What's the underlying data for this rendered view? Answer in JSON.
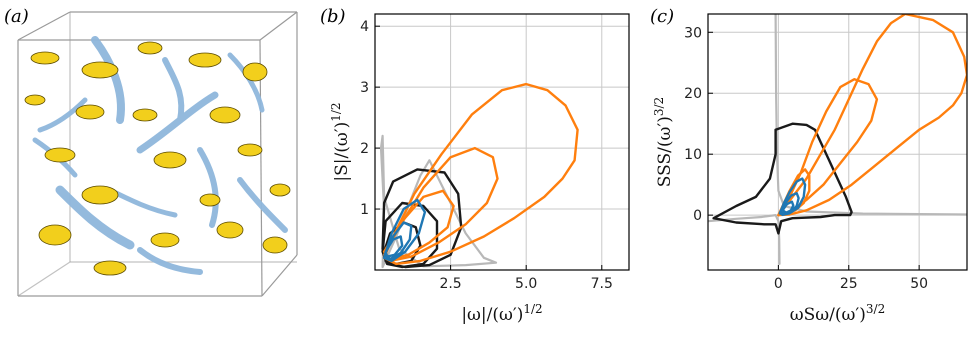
{
  "panels": {
    "a": {
      "label": "(a)"
    },
    "b": {
      "label": "(b)"
    },
    "c": {
      "label": "(c)"
    }
  },
  "colors": {
    "orange": "#ff7f0e",
    "blue": "#1f77b4",
    "black": "#1a1a1a",
    "grey": "#b8b8b8",
    "vortex_blue": "#8fb7dc",
    "strain_yellow": "#f2cf1c"
  },
  "chart_data": [
    {
      "panel": "a",
      "type": "other",
      "description_visible": "3-D isosurface rendering in a wireframe box: yellow blobs and blue tubes"
    },
    {
      "panel": "b",
      "type": "line",
      "xlabel": "|ω|/(ω′)^1/2",
      "ylabel": "|S|/(ω′)^1/2",
      "xlim": [
        0,
        8.4
      ],
      "ylim": [
        0,
        4.2
      ],
      "xticks": [
        2.5,
        5.0,
        7.5
      ],
      "xtick_labels": [
        "2.5",
        "5.0",
        "7.5"
      ],
      "yticks": [
        1,
        2,
        3,
        4
      ],
      "ytick_labels": [
        "1",
        "2",
        "3",
        "4"
      ],
      "grid": true,
      "series": [
        {
          "color": "grey",
          "points": [
            [
              0.25,
              0.05
            ],
            [
              0.7,
              0.55
            ],
            [
              1.1,
              1.05
            ],
            [
              1.5,
              1.55
            ],
            [
              1.8,
              1.8
            ],
            [
              2.2,
              1.4
            ],
            [
              2.6,
              1.0
            ],
            [
              3.0,
              0.6
            ],
            [
              3.6,
              0.2
            ],
            [
              4.0,
              0.12
            ],
            [
              3.0,
              0.08
            ],
            [
              1.6,
              0.06
            ],
            [
              0.8,
              0.35
            ],
            [
              0.3,
              1.2
            ],
            [
              0.25,
              2.2
            ],
            [
              0.2,
              2.0
            ],
            [
              0.3,
              1.0
            ],
            [
              0.25,
              0.05
            ]
          ]
        },
        {
          "color": "black",
          "points": [
            [
              0.25,
              0.35
            ],
            [
              0.3,
              1.1
            ],
            [
              0.6,
              1.45
            ],
            [
              1.4,
              1.65
            ],
            [
              2.3,
              1.6
            ],
            [
              2.75,
              1.25
            ],
            [
              2.85,
              0.7
            ],
            [
              2.5,
              0.25
            ],
            [
              1.8,
              0.08
            ],
            [
              1.0,
              0.05
            ],
            [
              0.45,
              0.1
            ],
            [
              0.25,
              0.35
            ]
          ]
        },
        {
          "color": "black",
          "points": [
            [
              0.25,
              0.3
            ],
            [
              0.35,
              0.8
            ],
            [
              0.9,
              1.1
            ],
            [
              1.6,
              1.05
            ],
            [
              2.05,
              0.8
            ],
            [
              2.05,
              0.35
            ],
            [
              1.6,
              0.1
            ],
            [
              0.9,
              0.05
            ],
            [
              0.4,
              0.1
            ],
            [
              0.25,
              0.3
            ]
          ]
        },
        {
          "color": "black",
          "points": [
            [
              0.3,
              0.3
            ],
            [
              0.5,
              0.6
            ],
            [
              0.95,
              0.78
            ],
            [
              1.35,
              0.7
            ],
            [
              1.5,
              0.4
            ],
            [
              1.2,
              0.15
            ],
            [
              0.7,
              0.1
            ],
            [
              0.35,
              0.15
            ],
            [
              0.3,
              0.3
            ]
          ]
        },
        {
          "color": "orange",
          "points": [
            [
              0.3,
              0.2
            ],
            [
              0.6,
              0.55
            ],
            [
              1.3,
              1.25
            ],
            [
              2.2,
              1.9
            ],
            [
              3.2,
              2.55
            ],
            [
              4.2,
              2.95
            ],
            [
              5.0,
              3.05
            ],
            [
              5.7,
              2.95
            ],
            [
              6.3,
              2.7
            ],
            [
              6.7,
              2.3
            ],
            [
              6.6,
              1.8
            ],
            [
              6.2,
              1.5
            ],
            [
              5.6,
              1.2
            ],
            [
              4.6,
              0.85
            ],
            [
              3.6,
              0.55
            ],
            [
              2.5,
              0.3
            ],
            [
              1.5,
              0.15
            ],
            [
              0.7,
              0.1
            ],
            [
              0.3,
              0.2
            ]
          ]
        },
        {
          "color": "orange",
          "points": [
            [
              0.3,
              0.25
            ],
            [
              0.8,
              0.7
            ],
            [
              1.6,
              1.35
            ],
            [
              2.5,
              1.85
            ],
            [
              3.3,
              2.0
            ],
            [
              3.9,
              1.85
            ],
            [
              4.05,
              1.5
            ],
            [
              3.7,
              1.1
            ],
            [
              3.0,
              0.75
            ],
            [
              2.1,
              0.45
            ],
            [
              1.2,
              0.22
            ],
            [
              0.5,
              0.15
            ],
            [
              0.3,
              0.25
            ]
          ]
        },
        {
          "color": "orange",
          "points": [
            [
              0.3,
              0.3
            ],
            [
              0.9,
              0.8
            ],
            [
              1.6,
              1.2
            ],
            [
              2.25,
              1.3
            ],
            [
              2.6,
              1.05
            ],
            [
              2.4,
              0.7
            ],
            [
              1.8,
              0.45
            ],
            [
              1.1,
              0.25
            ],
            [
              0.5,
              0.18
            ],
            [
              0.3,
              0.3
            ]
          ]
        },
        {
          "color": "blue",
          "points": [
            [
              0.3,
              0.2
            ],
            [
              0.55,
              0.6
            ],
            [
              0.95,
              1.0
            ],
            [
              1.4,
              1.15
            ],
            [
              1.65,
              0.95
            ],
            [
              1.45,
              0.6
            ],
            [
              1.0,
              0.3
            ],
            [
              0.55,
              0.15
            ],
            [
              0.3,
              0.2
            ]
          ]
        },
        {
          "color": "blue",
          "points": [
            [
              0.32,
              0.25
            ],
            [
              0.6,
              0.55
            ],
            [
              0.95,
              0.78
            ],
            [
              1.2,
              0.72
            ],
            [
              1.15,
              0.5
            ],
            [
              0.85,
              0.28
            ],
            [
              0.5,
              0.18
            ],
            [
              0.32,
              0.25
            ]
          ]
        },
        {
          "color": "blue",
          "points": [
            [
              0.35,
              0.3
            ],
            [
              0.6,
              0.5
            ],
            [
              0.85,
              0.55
            ],
            [
              0.9,
              0.4
            ],
            [
              0.65,
              0.25
            ],
            [
              0.4,
              0.22
            ],
            [
              0.35,
              0.3
            ]
          ]
        }
      ]
    },
    {
      "panel": "c",
      "type": "line",
      "xlabel": "ωSω/(ω′)^3/2",
      "ylabel": "SSS/(ω′)^3/2",
      "xlim": [
        -25,
        67
      ],
      "ylim": [
        -9,
        33
      ],
      "xticks": [
        0,
        25,
        50
      ],
      "xtick_labels": [
        "0",
        "25",
        "50"
      ],
      "yticks": [
        0,
        10,
        20,
        30
      ],
      "ytick_labels": [
        "0",
        "10",
        "20",
        "30"
      ],
      "grid": true,
      "series": [
        {
          "color": "grey",
          "points": [
            [
              -1,
              33
            ],
            [
              -0.8,
              20
            ],
            [
              -0.5,
              10
            ],
            [
              0,
              4
            ],
            [
              2,
              1.5
            ],
            [
              10,
              0.6
            ],
            [
              30,
              0.25
            ],
            [
              67,
              0.1
            ]
          ]
        },
        {
          "color": "grey",
          "points": [
            [
              -25,
              -1
            ],
            [
              -15,
              -0.6
            ],
            [
              -6,
              -0.3
            ],
            [
              -1,
              0
            ],
            [
              0,
              -1
            ],
            [
              0.3,
              -4
            ],
            [
              0.4,
              -8
            ]
          ]
        },
        {
          "color": "black",
          "points": [
            [
              -1,
              14
            ],
            [
              5,
              15
            ],
            [
              10,
              14.8
            ],
            [
              13,
              14
            ],
            [
              15,
              12
            ],
            [
              18,
              9
            ],
            [
              21,
              6
            ],
            [
              24,
              3
            ],
            [
              26,
              0.5
            ],
            [
              25.5,
              0
            ],
            [
              20,
              0
            ],
            [
              15,
              -0.3
            ],
            [
              5,
              -0.5
            ],
            [
              1,
              -1
            ],
            [
              0,
              -3
            ],
            [
              -1,
              -1.5
            ],
            [
              -5,
              -1.5
            ],
            [
              -15,
              -1.2
            ],
            [
              -23,
              -0.5
            ],
            [
              -15,
              1.5
            ],
            [
              -8,
              3
            ],
            [
              -3,
              6
            ],
            [
              -1,
              10
            ],
            [
              -1,
              14
            ]
          ]
        },
        {
          "color": "orange",
          "points": [
            [
              0,
              0
            ],
            [
              5,
              3
            ],
            [
              10,
              6
            ],
            [
              15,
              10
            ],
            [
              20,
              14
            ],
            [
              25,
              19
            ],
            [
              30,
              24
            ],
            [
              35,
              28.5
            ],
            [
              40,
              31.5
            ],
            [
              45,
              33
            ],
            [
              55,
              32
            ],
            [
              62,
              30
            ],
            [
              66,
              26
            ],
            [
              67,
              23
            ],
            [
              65,
              20
            ],
            [
              62,
              18
            ],
            [
              57,
              16
            ],
            [
              50,
              14
            ],
            [
              42,
              11
            ],
            [
              34,
              8
            ],
            [
              26,
              5
            ],
            [
              18,
              2.5
            ],
            [
              10,
              0.8
            ],
            [
              4,
              0.1
            ],
            [
              0,
              0
            ]
          ]
        },
        {
          "color": "orange",
          "points": [
            [
              0,
              0
            ],
            [
              4,
              3
            ],
            [
              8,
              7
            ],
            [
              12,
              12
            ],
            [
              17,
              17
            ],
            [
              22,
              21
            ],
            [
              27,
              22.3
            ],
            [
              32,
              21.5
            ],
            [
              35,
              19
            ],
            [
              33,
              15.5
            ],
            [
              28,
              12
            ],
            [
              22,
              8.5
            ],
            [
              16,
              5
            ],
            [
              10,
              2.5
            ],
            [
              4,
              0.6
            ],
            [
              0,
              0
            ]
          ]
        },
        {
          "color": "orange",
          "points": [
            [
              0,
              0
            ],
            [
              2,
              2
            ],
            [
              4,
              4
            ],
            [
              7,
              6.5
            ],
            [
              9.5,
              7.5
            ],
            [
              11,
              6.5
            ],
            [
              11,
              4
            ],
            [
              9,
              2
            ],
            [
              6,
              0.8
            ],
            [
              2,
              0.1
            ],
            [
              0,
              0
            ]
          ]
        },
        {
          "color": "blue",
          "points": [
            [
              0.5,
              0.3
            ],
            [
              2,
              2
            ],
            [
              4,
              3.8
            ],
            [
              6.5,
              5.5
            ],
            [
              8.5,
              6
            ],
            [
              9.5,
              5
            ],
            [
              9,
              3
            ],
            [
              7,
              1.2
            ],
            [
              4,
              0.3
            ],
            [
              1.5,
              0.05
            ],
            [
              0.5,
              0.3
            ]
          ]
        },
        {
          "color": "blue",
          "points": [
            [
              1,
              0.5
            ],
            [
              2.5,
              2
            ],
            [
              4.5,
              3.2
            ],
            [
              6.5,
              3.6
            ],
            [
              7.2,
              2.8
            ],
            [
              6.5,
              1.5
            ],
            [
              4.5,
              0.6
            ],
            [
              2,
              0.2
            ],
            [
              1,
              0.5
            ]
          ]
        },
        {
          "color": "blue",
          "points": [
            [
              1.5,
              0.8
            ],
            [
              3,
              1.8
            ],
            [
              4.8,
              2.2
            ],
            [
              5.3,
              1.6
            ],
            [
              4.5,
              0.8
            ],
            [
              2.8,
              0.4
            ],
            [
              1.5,
              0.8
            ]
          ]
        }
      ]
    }
  ]
}
